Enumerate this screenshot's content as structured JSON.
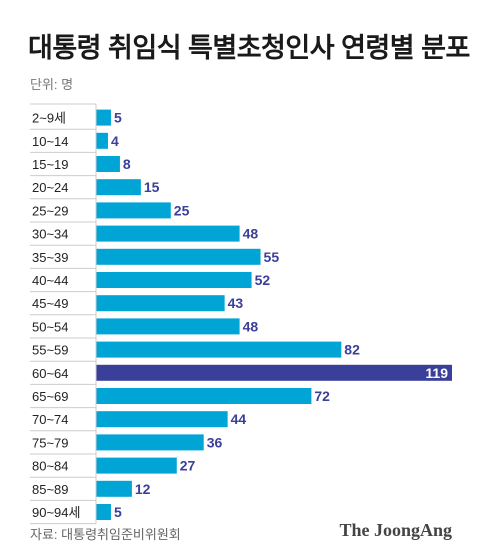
{
  "title": "대통령 취임식 특별초청인사 연령별 분포",
  "unit_label": "단위: 명",
  "source": "자료: 대통령취임준비위원회",
  "brand": "The JoongAng",
  "colors": {
    "bar": "#00a5d6",
    "highlight": "#3a3f9a",
    "value_label": "#3a3f9a",
    "highlight_label": "#ffffff",
    "axis": "#cccccc",
    "category_label": "#222222"
  },
  "chart_data": {
    "type": "bar",
    "orientation": "horizontal",
    "categories": [
      "2~9세",
      "10~14",
      "15~19",
      "20~24",
      "25~29",
      "30~34",
      "35~39",
      "40~44",
      "45~49",
      "50~54",
      "55~59",
      "60~64",
      "65~69",
      "70~74",
      "75~79",
      "80~84",
      "85~89",
      "90~94세"
    ],
    "values": [
      5,
      4,
      8,
      15,
      25,
      48,
      55,
      52,
      43,
      48,
      82,
      119,
      72,
      44,
      36,
      27,
      12,
      5
    ],
    "highlight_index": 11,
    "xlim": [
      0,
      119
    ],
    "title": "대통령 취임식 특별초청인사 연령별 분포",
    "xlabel": "",
    "ylabel": ""
  }
}
